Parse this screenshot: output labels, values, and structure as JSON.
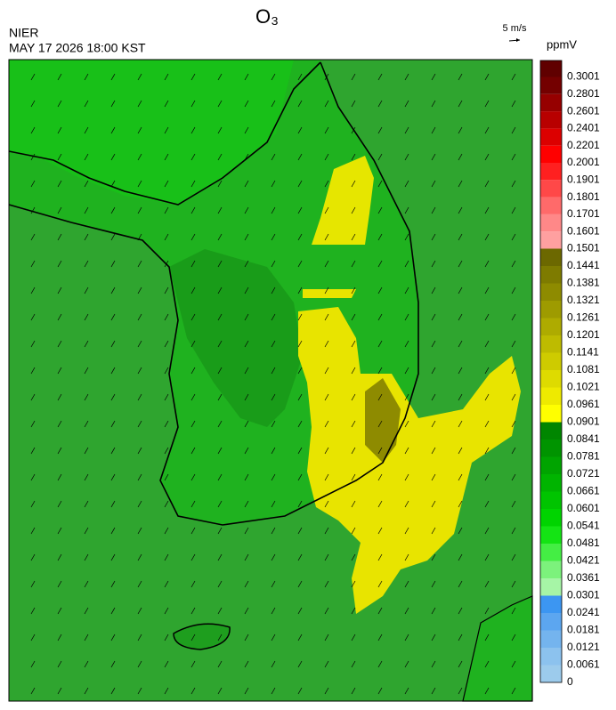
{
  "header": {
    "title": "O₃",
    "agency": "NIER",
    "datetime": "MAY 17 2026 18:00 KST",
    "wind_scale": "5 m/s",
    "unit": "ppmV"
  },
  "colorbar": {
    "levels": [
      0,
      0.0061,
      0.0121,
      0.0181,
      0.0241,
      0.0301,
      0.0361,
      0.0421,
      0.0481,
      0.0541,
      0.0601,
      0.0661,
      0.0721,
      0.0781,
      0.0841,
      0.0901,
      0.0961,
      0.1021,
      0.1081,
      0.1141,
      0.1201,
      0.1261,
      0.1321,
      0.1381,
      0.1441,
      0.1501,
      0.1601,
      0.1701,
      0.1801,
      0.1901,
      0.2001,
      0.2201,
      0.2401,
      0.2601,
      0.2801,
      0.3001
    ],
    "colors": [
      "#9ccbec",
      "#8cc2ee",
      "#74b4ee",
      "#5ca6f0",
      "#3c96f2",
      "#a6f5a6",
      "#7cf27c",
      "#44ee44",
      "#14e414",
      "#00d400",
      "#00c400",
      "#00b400",
      "#00a400",
      "#009400",
      "#008600",
      "#ffff00",
      "#eeea00",
      "#dedb00",
      "#cecb00",
      "#bebb00",
      "#aeab00",
      "#9e9b00",
      "#8e8b00",
      "#7e7b00",
      "#6c6800",
      "#ffa0a0",
      "#ff8888",
      "#ff6a6a",
      "#ff4848",
      "#ff2020",
      "#ff0000",
      "#dc0000",
      "#b80000",
      "#960000",
      "#740000",
      "#600000"
    ]
  }
}
